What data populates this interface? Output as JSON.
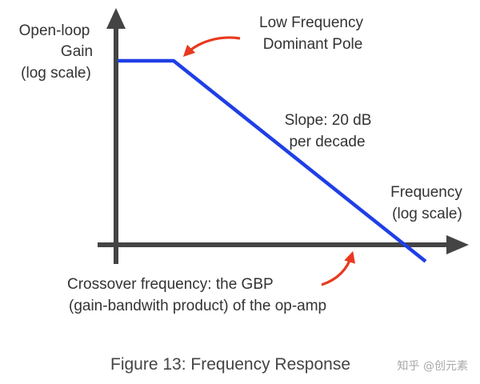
{
  "chart_data": {
    "type": "line",
    "series": [
      {
        "color": "#1f3fe6",
        "points": [
          {
            "segment": "flat gain",
            "x": 0.0,
            "y": 5.0
          },
          {
            "segment": "dominant pole",
            "x": 1.0,
            "y": 5.0
          },
          {
            "segment": "slope",
            "x": 4.3,
            "y": 1.0
          },
          {
            "segment": "crossover",
            "x": 5.5,
            "y": -0.45
          }
        ]
      }
    ],
    "xlabel_lines": [
      "Frequency",
      "(log scale)"
    ],
    "ylabel_lines": [
      "Open-loop",
      "Gain",
      "(log scale)"
    ],
    "x_scale": "log",
    "y_scale": "log",
    "grid": false,
    "annotations": {
      "pole_lines": [
        "Low Frequency",
        "Dominant Pole"
      ],
      "slope_lines": [
        "Slope: 20 dB",
        "per decade"
      ],
      "crossover_lines": [
        "Crossover frequency: the GBP",
        "(gain-bandwith product) of the op-amp"
      ]
    },
    "axis_color": "#444444",
    "arrow_color": "#e8391e"
  },
  "caption": "Figure 13: Frequency Response",
  "watermark": "知乎 @创元素"
}
